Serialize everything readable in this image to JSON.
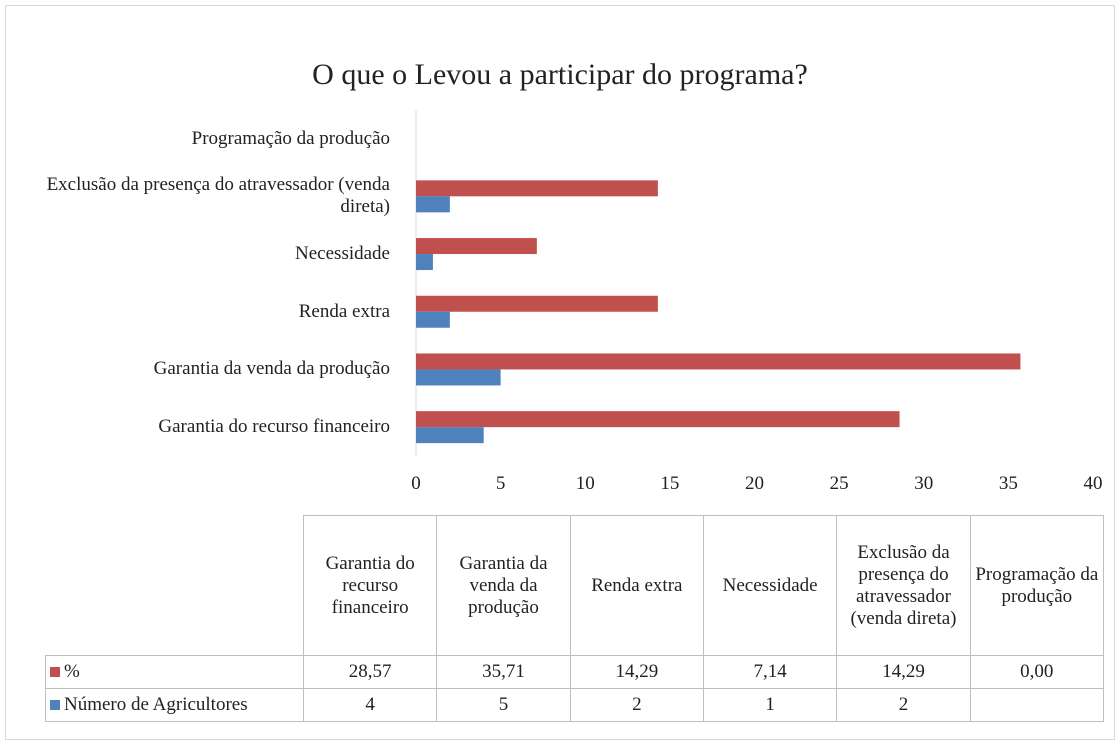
{
  "chart_data": {
    "type": "bar",
    "orientation": "horizontal",
    "title": "O que o Levou a participar do programa?",
    "categories": [
      "Garantia do recurso financeiro",
      "Garantia da venda da produção",
      "Renda extra",
      "Necessidade",
      "Exclusão da presença do atravessador (venda direta)",
      "Programação da produção"
    ],
    "series": [
      {
        "name": "%",
        "color": "#c0504d",
        "values": [
          28.57,
          35.71,
          14.29,
          7.14,
          14.29,
          0
        ],
        "value_labels": [
          "28,57",
          "35,71",
          "14,29",
          "7,14",
          "14,29",
          "0,00"
        ]
      },
      {
        "name": "Número de Agricultores",
        "color": "#4f81bd",
        "values": [
          4,
          5,
          2,
          1,
          2,
          null
        ]
      }
    ],
    "xlim": [
      0,
      40
    ],
    "xticks": [
      0,
      5,
      10,
      15,
      20,
      25,
      30,
      35,
      40
    ],
    "grid": false,
    "data_table": true
  }
}
